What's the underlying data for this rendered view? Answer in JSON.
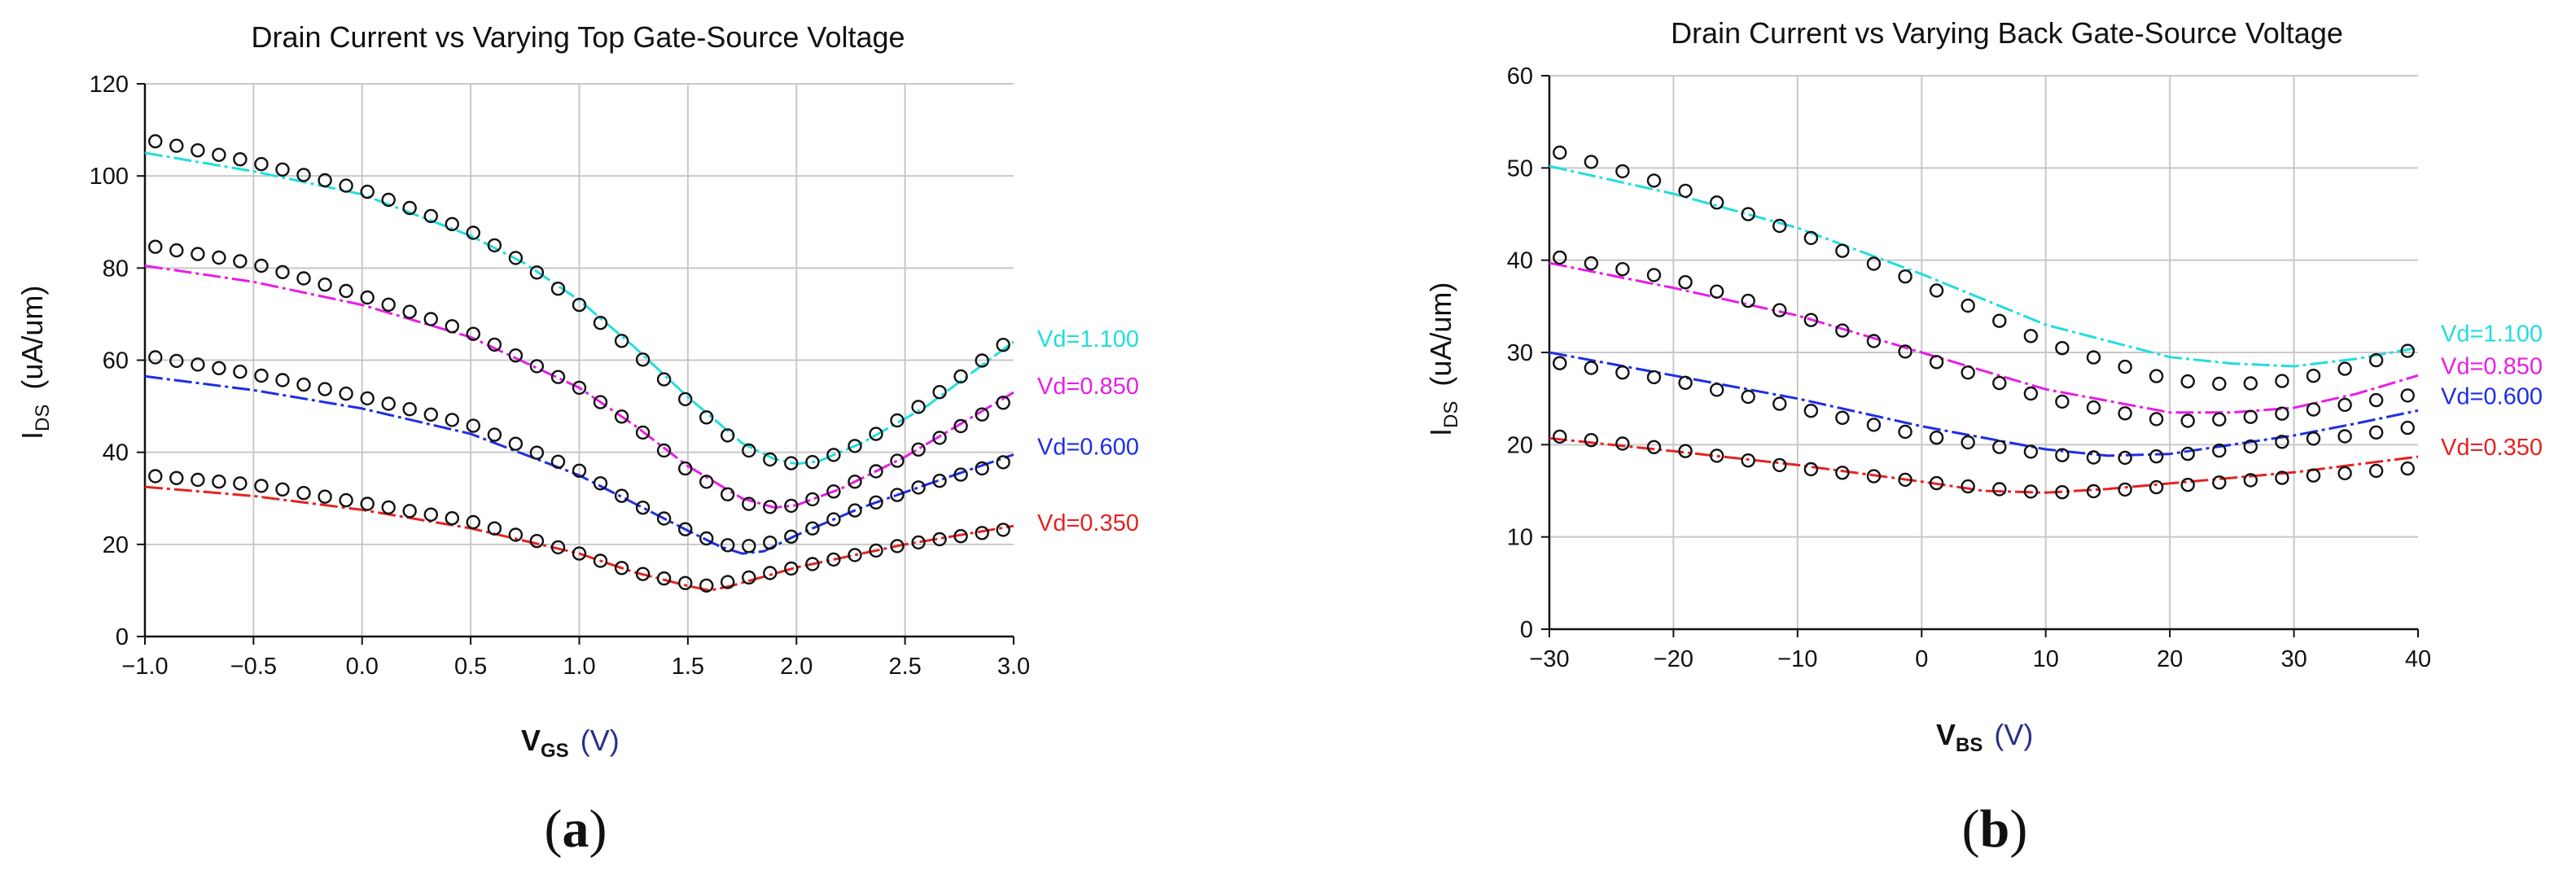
{
  "charts": [
    {
      "panel_letter": "a",
      "chart_data": {
        "type": "line",
        "title": "Drain Current vs Varying Top Gate-Source Voltage",
        "xlabel_main": "V",
        "xlabel_sub": "GS",
        "xlabel_unit": "(V)",
        "ylabel_main": "I",
        "ylabel_sub": "DS",
        "ylabel_unit": "(uA/um)",
        "xlim": [
          -1.0,
          3.0
        ],
        "ylim": [
          0,
          120
        ],
        "xticks": [
          -1.0,
          -0.5,
          0.0,
          0.5,
          1.0,
          1.5,
          2.0,
          2.5,
          3.0
        ],
        "xtick_labels": [
          "−1.0",
          "−0.5",
          "0.0",
          "0.5",
          "1.0",
          "1.5",
          "2.0",
          "2.5",
          "3.0"
        ],
        "yticks": [
          0,
          20,
          40,
          60,
          80,
          100,
          120
        ],
        "ytick_labels": [
          "0",
          "20",
          "40",
          "60",
          "80",
          "100",
          "120"
        ],
        "grid": true,
        "series": [
          {
            "name": "Vd=1.100",
            "color": "#22dddd",
            "model": {
              "x": [
                -1.0,
                -0.5,
                0.0,
                0.5,
                0.75,
                1.0,
                1.25,
                1.5,
                1.75,
                1.9,
                2.0,
                2.1,
                2.3,
                2.6,
                3.0
              ],
              "y": [
                105,
                101,
                96,
                87,
                81,
                73,
                63,
                52,
                42,
                38.5,
                37.5,
                38,
                42,
                50,
                64
              ]
            },
            "measured": {
              "x": [
                -1.0,
                -0.5,
                0.0,
                0.5,
                0.75,
                1.0,
                1.25,
                1.5,
                1.75,
                1.9,
                2.0,
                2.1,
                2.3,
                2.6,
                3.0
              ],
              "y": [
                108,
                103,
                97,
                88,
                81,
                72,
                62,
                51,
                41,
                38,
                37.5,
                38,
                42,
                51,
                65
              ]
            }
          },
          {
            "name": "Vd=0.850",
            "color": "#e61ee6",
            "model": {
              "x": [
                -1.0,
                -0.5,
                0.0,
                0.5,
                1.0,
                1.25,
                1.5,
                1.75,
                1.9,
                2.0,
                2.2,
                2.5,
                3.0
              ],
              "y": [
                80.5,
                77,
                72,
                65,
                54,
                46,
                37,
                30,
                28,
                28.5,
                32,
                39,
                53
              ]
            },
            "measured": {
              "x": [
                -1.0,
                -0.5,
                0.0,
                0.5,
                1.0,
                1.25,
                1.5,
                1.75,
                1.9,
                2.0,
                2.2,
                2.5,
                3.0
              ],
              "y": [
                85,
                81,
                74,
                66,
                54,
                46,
                36,
                29,
                28,
                28.5,
                32,
                39,
                52
              ]
            }
          },
          {
            "name": "Vd=0.600",
            "color": "#1e2ee6",
            "model": {
              "x": [
                -1.0,
                -0.5,
                0.0,
                0.5,
                1.0,
                1.25,
                1.5,
                1.65,
                1.75,
                1.85,
                2.0,
                2.3,
                2.6,
                3.0
              ],
              "y": [
                56.5,
                53.5,
                49.5,
                44,
                35,
                29,
                23,
                19.5,
                18,
                18.5,
                22,
                28,
                33,
                39.5
              ]
            },
            "measured": {
              "x": [
                -1.0,
                -0.5,
                0.0,
                0.5,
                1.0,
                1.25,
                1.5,
                1.65,
                1.75,
                1.85,
                2.0,
                2.3,
                2.6,
                3.0
              ],
              "y": [
                61,
                57,
                52,
                46,
                36,
                29,
                23,
                20,
                19.5,
                20,
                22,
                28,
                33,
                38.5
              ]
            }
          },
          {
            "name": "Vd=0.350",
            "color": "#e62222",
            "model": {
              "x": [
                -1.0,
                -0.5,
                0.0,
                0.5,
                1.0,
                1.25,
                1.5,
                1.6,
                1.7,
                2.0,
                2.5,
                3.0
              ],
              "y": [
                32.5,
                30.5,
                27.5,
                23.5,
                18,
                14,
                11,
                10,
                11,
                15,
                20,
                24
              ]
            },
            "measured": {
              "x": [
                -1.0,
                -0.5,
                0.0,
                0.5,
                1.0,
                1.25,
                1.5,
                1.6,
                1.7,
                2.0,
                2.5,
                3.0
              ],
              "y": [
                35,
                33,
                29,
                25,
                18,
                14,
                11.5,
                11,
                12,
                15,
                20,
                23.5
              ]
            }
          }
        ]
      }
    },
    {
      "panel_letter": "b",
      "chart_data": {
        "type": "line",
        "title": "Drain Current vs Varying Back Gate-Source Voltage",
        "xlabel_main": "V",
        "xlabel_sub": "BS",
        "xlabel_unit": "(V)",
        "ylabel_main": "I",
        "ylabel_sub": "DS",
        "ylabel_unit": "(uA/um)",
        "xlim": [
          -30,
          40
        ],
        "ylim": [
          0,
          60
        ],
        "xticks": [
          -30,
          -20,
          -10,
          0,
          10,
          20,
          30,
          40
        ],
        "xtick_labels": [
          "−30",
          "−20",
          "−10",
          "0",
          "10",
          "20",
          "30",
          "40"
        ],
        "yticks": [
          0,
          10,
          20,
          30,
          40,
          50,
          60
        ],
        "ytick_labels": [
          "0",
          "10",
          "20",
          "30",
          "40",
          "50",
          "60"
        ],
        "grid": true,
        "series": [
          {
            "name": "Vd=1.100",
            "color": "#22dddd",
            "model": {
              "x": [
                -30,
                -20,
                -10,
                0,
                10,
                20,
                25,
                30,
                35,
                40
              ],
              "y": [
                50.2,
                47.2,
                43.5,
                38.5,
                33,
                29.5,
                28.8,
                28.5,
                29.3,
                30.5
              ]
            },
            "measured": {
              "x": [
                -30,
                -20,
                -10,
                0,
                10,
                20,
                25,
                30,
                35,
                40
              ],
              "y": [
                52,
                48,
                43,
                37.5,
                31,
                27,
                26.5,
                27,
                28.5,
                30.5
              ]
            }
          },
          {
            "name": "Vd=0.850",
            "color": "#e61ee6",
            "model": {
              "x": [
                -30,
                -20,
                -10,
                0,
                10,
                20,
                25,
                30,
                35,
                40
              ],
              "y": [
                39.7,
                37,
                34,
                30,
                26,
                23.5,
                23.5,
                24,
                25.5,
                27.5
              ]
            },
            "measured": {
              "x": [
                -30,
                -20,
                -10,
                0,
                10,
                20,
                25,
                30,
                35,
                40
              ],
              "y": [
                40.5,
                38,
                34,
                29.5,
                25,
                22.5,
                22.8,
                23.5,
                24.5,
                25.5
              ]
            }
          },
          {
            "name": "Vd=0.600",
            "color": "#1e2ee6",
            "model": {
              "x": [
                -30,
                -20,
                -10,
                0,
                10,
                15,
                20,
                25,
                30,
                35,
                40
              ],
              "y": [
                30,
                27.5,
                25,
                22,
                19.5,
                18.8,
                19,
                20,
                21,
                22.3,
                23.7
              ]
            },
            "measured": {
              "x": [
                -30,
                -20,
                -10,
                0,
                10,
                15,
                20,
                25,
                30,
                35,
                40
              ],
              "y": [
                29,
                27,
                24,
                21,
                19,
                18.5,
                18.8,
                19.5,
                20.5,
                21,
                22
              ]
            }
          },
          {
            "name": "Vd=0.350",
            "color": "#e62222",
            "model": {
              "x": [
                -30,
                -20,
                -10,
                0,
                5,
                10,
                15,
                20,
                30,
                40
              ],
              "y": [
                20.7,
                19.3,
                17.8,
                16,
                15,
                14.8,
                15.2,
                15.8,
                17,
                18.7
              ]
            },
            "measured": {
              "x": [
                -30,
                -20,
                -10,
                0,
                5,
                10,
                15,
                20,
                30,
                40
              ],
              "y": [
                21,
                19.5,
                17.5,
                16,
                15.3,
                14.8,
                15,
                15.5,
                16.5,
                17.5
              ]
            }
          }
        ]
      }
    }
  ]
}
